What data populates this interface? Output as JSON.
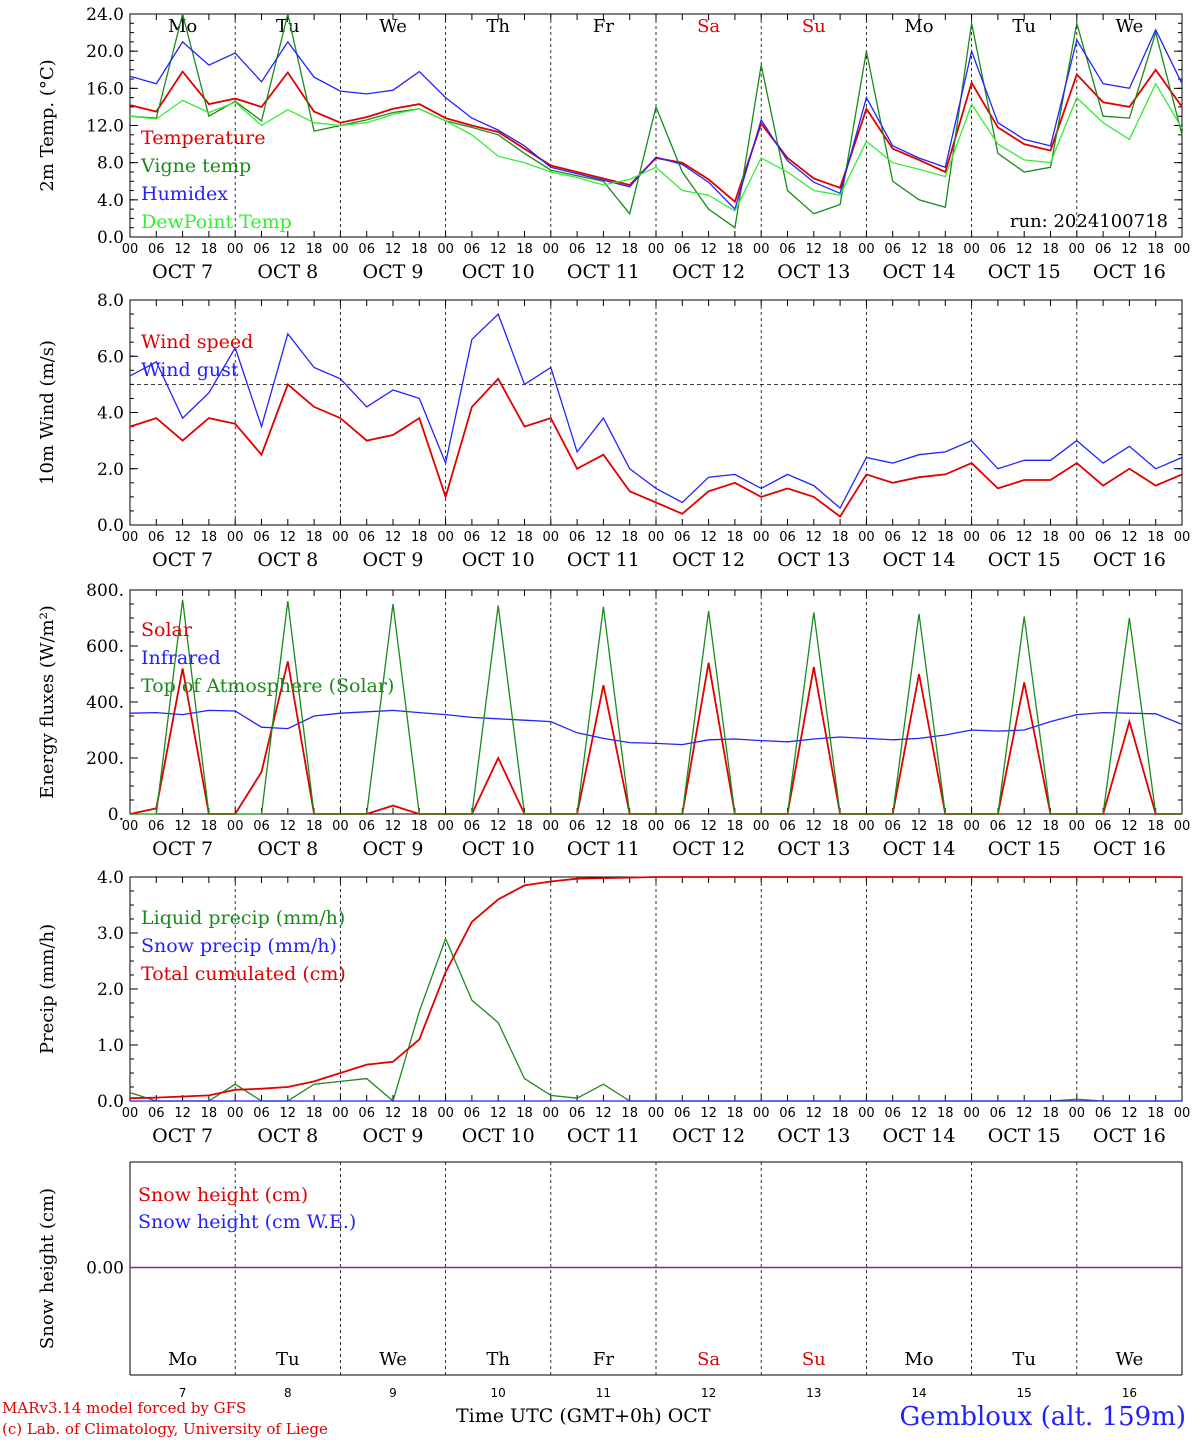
{
  "days": [
    {
      "dow": "Mo",
      "date": "OCT  7",
      "num": "7",
      "weekend": false
    },
    {
      "dow": "Tu",
      "date": "OCT  8",
      "num": "8",
      "weekend": false
    },
    {
      "dow": "We",
      "date": "OCT  9",
      "num": "9",
      "weekend": false
    },
    {
      "dow": "Th",
      "date": "OCT 10",
      "num": "10",
      "weekend": false
    },
    {
      "dow": "Fr",
      "date": "OCT 11",
      "num": "11",
      "weekend": false
    },
    {
      "dow": "Sa",
      "date": "OCT 12",
      "num": "12",
      "weekend": true
    },
    {
      "dow": "Su",
      "date": "OCT 13",
      "num": "13",
      "weekend": true
    },
    {
      "dow": "Mo",
      "date": "OCT 14",
      "num": "14",
      "weekend": false
    },
    {
      "dow": "Tu",
      "date": "OCT 15",
      "num": "15",
      "weekend": false
    },
    {
      "dow": "We",
      "date": "OCT 16",
      "num": "16",
      "weekend": false
    }
  ],
  "hour_ticks": [
    "00",
    "06",
    "12",
    "18"
  ],
  "colors": {
    "red": "#e00000",
    "green": "#1a8a1a",
    "blue": "#2222ff",
    "lightgreen": "#33ee33",
    "purple": "#7a2a8a",
    "axis": "#000000"
  },
  "footer": {
    "model": "MARv3.14 model forced by GFS",
    "lab": "(c) Lab. of Climatology, University of Liege",
    "xlabel": "Time UTC (GMT+0h) OCT",
    "station": "Gembloux (alt. 159m)"
  },
  "chart_data": [
    {
      "type": "line",
      "ylabel": "2m Temp. (°C)",
      "ylim": [
        0,
        24
      ],
      "yticks": [
        "0.0",
        "4.0",
        "8.0",
        "12.0",
        "16.0",
        "20.0",
        "24.0"
      ],
      "run_label": "run: 2024100718",
      "x_hours_since": "2024-10-07 00:00",
      "x": [
        0,
        6,
        12,
        18,
        24,
        30,
        36,
        42,
        48,
        54,
        60,
        66,
        72,
        78,
        84,
        90,
        96,
        102,
        108,
        114,
        120,
        126,
        132,
        138,
        144,
        150,
        156,
        162,
        168,
        174,
        180,
        186,
        192,
        198,
        204,
        210,
        216,
        222,
        228,
        234,
        240
      ],
      "series": [
        {
          "name": "Temperature",
          "color": "red",
          "values": [
            14.2,
            13.5,
            17.8,
            14.3,
            14.9,
            14.0,
            17.7,
            13.5,
            12.3,
            12.9,
            13.8,
            14.3,
            12.8,
            12.0,
            11.3,
            9.5,
            7.7,
            7.0,
            6.3,
            5.6,
            8.5,
            8.0,
            6.2,
            3.8,
            12.2,
            8.5,
            6.3,
            5.3,
            13.8,
            9.5,
            8.3,
            7.0,
            16.6,
            11.8,
            10.0,
            9.3,
            17.5,
            14.5,
            14.0,
            18.0,
            14.0
          ]
        },
        {
          "name": "Vigne temp",
          "color": "green",
          "values": [
            13.0,
            12.8,
            24.0,
            13.0,
            14.6,
            12.5,
            24.0,
            11.4,
            12.0,
            12.6,
            13.4,
            13.8,
            12.5,
            11.8,
            11.0,
            9.0,
            7.2,
            6.6,
            6.0,
            2.5,
            14.0,
            7.0,
            3.0,
            1.0,
            18.5,
            5.0,
            2.5,
            3.5,
            20.0,
            6.0,
            4.0,
            3.2,
            23.0,
            9.0,
            7.0,
            7.5,
            23.0,
            13.0,
            12.8,
            22.0,
            11.0
          ]
        },
        {
          "name": "Humidex",
          "color": "blue",
          "values": [
            17.3,
            16.5,
            21.0,
            18.5,
            19.8,
            16.7,
            21.0,
            17.2,
            15.7,
            15.4,
            15.8,
            17.8,
            15.0,
            12.8,
            11.5,
            9.8,
            7.5,
            6.8,
            6.1,
            5.4,
            8.6,
            7.8,
            5.9,
            3.0,
            12.6,
            8.2,
            5.9,
            4.7,
            15.0,
            9.8,
            8.5,
            7.5,
            20.0,
            12.3,
            10.5,
            9.8,
            21.2,
            16.5,
            16.0,
            22.3,
            16.5
          ]
        },
        {
          "name": "DewPoint Temp",
          "color": "lightgreen",
          "values": [
            13.0,
            12.7,
            14.7,
            13.4,
            14.5,
            12.0,
            13.7,
            12.3,
            12.0,
            12.3,
            13.2,
            13.8,
            12.5,
            11.0,
            8.7,
            8.0,
            7.0,
            6.4,
            5.6,
            6.2,
            7.5,
            5.0,
            4.5,
            2.8,
            8.5,
            7.0,
            5.0,
            4.5,
            10.3,
            8.0,
            7.3,
            6.5,
            14.3,
            10.0,
            8.3,
            8.0,
            15.0,
            12.3,
            10.5,
            16.5,
            11.7
          ]
        }
      ]
    },
    {
      "type": "line",
      "ylabel": "10m Wind (m/s)",
      "ylim": [
        0,
        8
      ],
      "yticks": [
        "0.0",
        "2.0",
        "4.0",
        "6.0",
        "8.0"
      ],
      "reference_line": 5.0,
      "x": [
        0,
        6,
        12,
        18,
        24,
        30,
        36,
        42,
        48,
        54,
        60,
        66,
        72,
        78,
        84,
        90,
        96,
        102,
        108,
        114,
        120,
        126,
        132,
        138,
        144,
        150,
        156,
        162,
        168,
        174,
        180,
        186,
        192,
        198,
        204,
        210,
        216,
        222,
        228,
        234,
        240
      ],
      "series": [
        {
          "name": "Wind speed",
          "color": "red",
          "values": [
            3.5,
            3.8,
            3.0,
            3.8,
            3.6,
            2.5,
            5.0,
            4.2,
            3.8,
            3.0,
            3.2,
            3.8,
            1.0,
            4.2,
            5.2,
            3.5,
            3.8,
            2.0,
            2.5,
            1.2,
            0.8,
            0.4,
            1.2,
            1.5,
            1.0,
            1.3,
            1.0,
            0.3,
            1.8,
            1.5,
            1.7,
            1.8,
            2.2,
            1.3,
            1.6,
            1.6,
            2.2,
            1.4,
            2.0,
            1.4,
            1.8
          ]
        },
        {
          "name": "Wind gust",
          "color": "blue",
          "values": [
            5.3,
            5.8,
            3.8,
            4.7,
            6.3,
            3.5,
            6.8,
            5.6,
            5.2,
            4.2,
            4.8,
            4.5,
            2.2,
            6.6,
            7.5,
            5.0,
            5.6,
            2.6,
            3.8,
            2.0,
            1.3,
            0.8,
            1.7,
            1.8,
            1.3,
            1.8,
            1.4,
            0.6,
            2.4,
            2.2,
            2.5,
            2.6,
            3.0,
            2.0,
            2.3,
            2.3,
            3.0,
            2.2,
            2.8,
            2.0,
            2.4
          ]
        }
      ]
    },
    {
      "type": "line",
      "ylabel": "Energy fluxes (W/m²)",
      "ylim": [
        0,
        800
      ],
      "yticks": [
        "0.",
        "200.",
        "400.",
        "600.",
        "800."
      ],
      "x": [
        0,
        6,
        12,
        18,
        24,
        30,
        36,
        42,
        48,
        54,
        60,
        66,
        72,
        78,
        84,
        90,
        96,
        102,
        108,
        114,
        120,
        126,
        132,
        138,
        144,
        150,
        156,
        162,
        168,
        174,
        180,
        186,
        192,
        198,
        204,
        210,
        216,
        222,
        228,
        234,
        240
      ],
      "series": [
        {
          "name": "Solar",
          "color": "red",
          "values": [
            0,
            20,
            520,
            0,
            0,
            150,
            545,
            0,
            0,
            0,
            30,
            0,
            0,
            0,
            200,
            0,
            0,
            0,
            460,
            0,
            0,
            0,
            540,
            0,
            0,
            0,
            525,
            0,
            0,
            0,
            500,
            0,
            0,
            0,
            470,
            0,
            0,
            0,
            330,
            0,
            0
          ]
        },
        {
          "name": "Infrared",
          "color": "blue",
          "values": [
            360,
            362,
            355,
            370,
            368,
            310,
            305,
            350,
            360,
            365,
            370,
            362,
            355,
            345,
            340,
            335,
            330,
            290,
            270,
            255,
            252,
            248,
            265,
            268,
            262,
            258,
            268,
            275,
            270,
            265,
            270,
            282,
            300,
            296,
            300,
            330,
            355,
            362,
            360,
            358,
            320
          ]
        },
        {
          "name": "Top of Atmosphere (Solar)",
          "color": "green",
          "values": [
            0,
            0,
            765,
            0,
            0,
            0,
            760,
            0,
            0,
            0,
            750,
            0,
            0,
            0,
            745,
            0,
            0,
            0,
            740,
            0,
            0,
            0,
            725,
            0,
            0,
            0,
            720,
            0,
            0,
            0,
            715,
            0,
            0,
            0,
            705,
            0,
            0,
            0,
            700,
            0,
            0
          ]
        }
      ]
    },
    {
      "type": "line",
      "ylabel": "Precip (mm/h)",
      "ylim": [
        0,
        4
      ],
      "yticks": [
        "0.0",
        "1.0",
        "2.0",
        "3.0",
        "4.0"
      ],
      "x": [
        0,
        6,
        12,
        18,
        24,
        30,
        36,
        42,
        48,
        54,
        60,
        66,
        72,
        78,
        84,
        90,
        96,
        102,
        108,
        114,
        120,
        126,
        132,
        138,
        144,
        150,
        156,
        162,
        168,
        174,
        180,
        186,
        192,
        198,
        204,
        210,
        216,
        222,
        228,
        234,
        240
      ],
      "series": [
        {
          "name": "Liquid precip (mm/h)",
          "color": "green",
          "values": [
            0.15,
            0.0,
            0.0,
            0.0,
            0.3,
            0.0,
            0.0,
            0.3,
            0.35,
            0.4,
            0.0,
            1.6,
            2.9,
            1.8,
            1.4,
            0.4,
            0.1,
            0.05,
            0.3,
            0.0,
            0.0,
            0.0,
            0.0,
            0.0,
            0.0,
            0.0,
            0.0,
            0.0,
            0.0,
            0.0,
            0.0,
            0.0,
            0.0,
            0.0,
            0.0,
            0.0,
            0.03,
            0.0,
            0.0,
            0.0,
            0.0
          ]
        },
        {
          "name": "Snow precip (mm/h)",
          "color": "blue",
          "values": [
            0,
            0,
            0,
            0,
            0,
            0,
            0,
            0,
            0,
            0,
            0,
            0,
            0,
            0,
            0,
            0,
            0,
            0,
            0,
            0,
            0,
            0,
            0,
            0,
            0,
            0,
            0,
            0,
            0,
            0,
            0,
            0,
            0,
            0,
            0,
            0,
            0,
            0,
            0,
            0,
            0
          ]
        },
        {
          "name": "Total cumulated (cm)",
          "color": "red",
          "values": [
            0.05,
            0.06,
            0.08,
            0.1,
            0.2,
            0.22,
            0.25,
            0.35,
            0.5,
            0.65,
            0.7,
            1.1,
            2.3,
            3.2,
            3.6,
            3.85,
            3.92,
            3.97,
            3.98,
            3.99,
            4.0,
            4.0,
            4.0,
            4.0,
            4.0,
            4.0,
            4.0,
            4.0,
            4.0,
            4.0,
            4.0,
            4.0,
            4.0,
            4.0,
            4.0,
            4.0,
            4.0,
            4.0,
            4.0,
            4.0,
            4.0
          ]
        }
      ]
    },
    {
      "type": "line",
      "ylabel": "Snow height (cm)",
      "yticks": [
        "0.00"
      ],
      "x": [
        0,
        240
      ],
      "series": [
        {
          "name": "Snow height (cm)",
          "color": "red",
          "values": [
            0,
            0
          ]
        },
        {
          "name": "Snow height (cm W.E.)",
          "color": "blue",
          "values": [
            0,
            0
          ]
        }
      ]
    }
  ]
}
